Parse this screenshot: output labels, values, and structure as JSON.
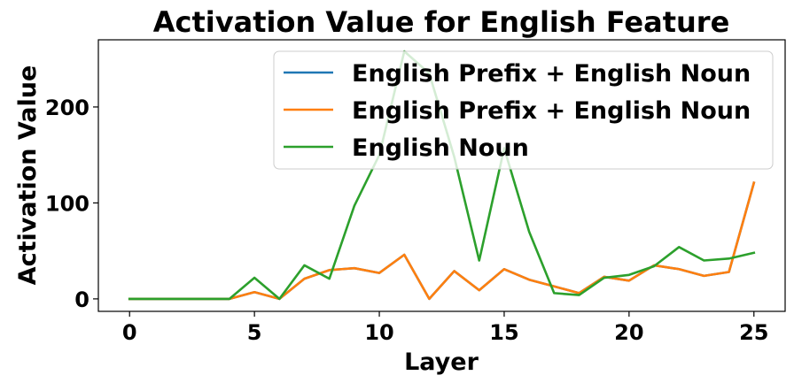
{
  "chart_data": {
    "type": "line",
    "title": "Activation Value for English Feature",
    "xlabel": "Layer",
    "ylabel": "Activation Value",
    "xlim": [
      -1.25,
      26.25
    ],
    "ylim": [
      -13,
      270
    ],
    "xticks": [
      0,
      5,
      10,
      15,
      20,
      25
    ],
    "yticks": [
      0,
      100,
      200
    ],
    "grid": false,
    "legend_position": "top-right",
    "x": [
      0,
      1,
      2,
      3,
      4,
      5,
      6,
      7,
      8,
      9,
      10,
      11,
      12,
      13,
      14,
      15,
      16,
      17,
      18,
      19,
      20,
      21,
      22,
      23,
      24,
      25
    ],
    "series": [
      {
        "name": "English Prefix + English Noun",
        "color": "#1f77b4",
        "values": [
          0,
          0,
          0,
          0,
          0,
          7,
          0,
          21,
          30,
          32,
          27,
          46,
          0,
          29,
          9,
          31,
          20,
          13,
          6,
          23,
          19,
          35,
          31,
          24,
          28,
          121
        ]
      },
      {
        "name": "English Prefix + English Noun",
        "color": "#ff7f0e",
        "values": [
          0,
          0,
          0,
          0,
          0,
          7,
          0,
          21,
          30,
          32,
          27,
          46,
          0,
          29,
          9,
          31,
          20,
          13,
          6,
          23,
          19,
          35,
          31,
          24,
          28,
          121
        ]
      },
      {
        "name": "English Noun",
        "color": "#2ca02c",
        "values": [
          0,
          0,
          0,
          0,
          0,
          22,
          0,
          35,
          21,
          97,
          150,
          258,
          235,
          148,
          40,
          157,
          70,
          6,
          4,
          22,
          25,
          34,
          54,
          40,
          42,
          48
        ]
      }
    ]
  }
}
